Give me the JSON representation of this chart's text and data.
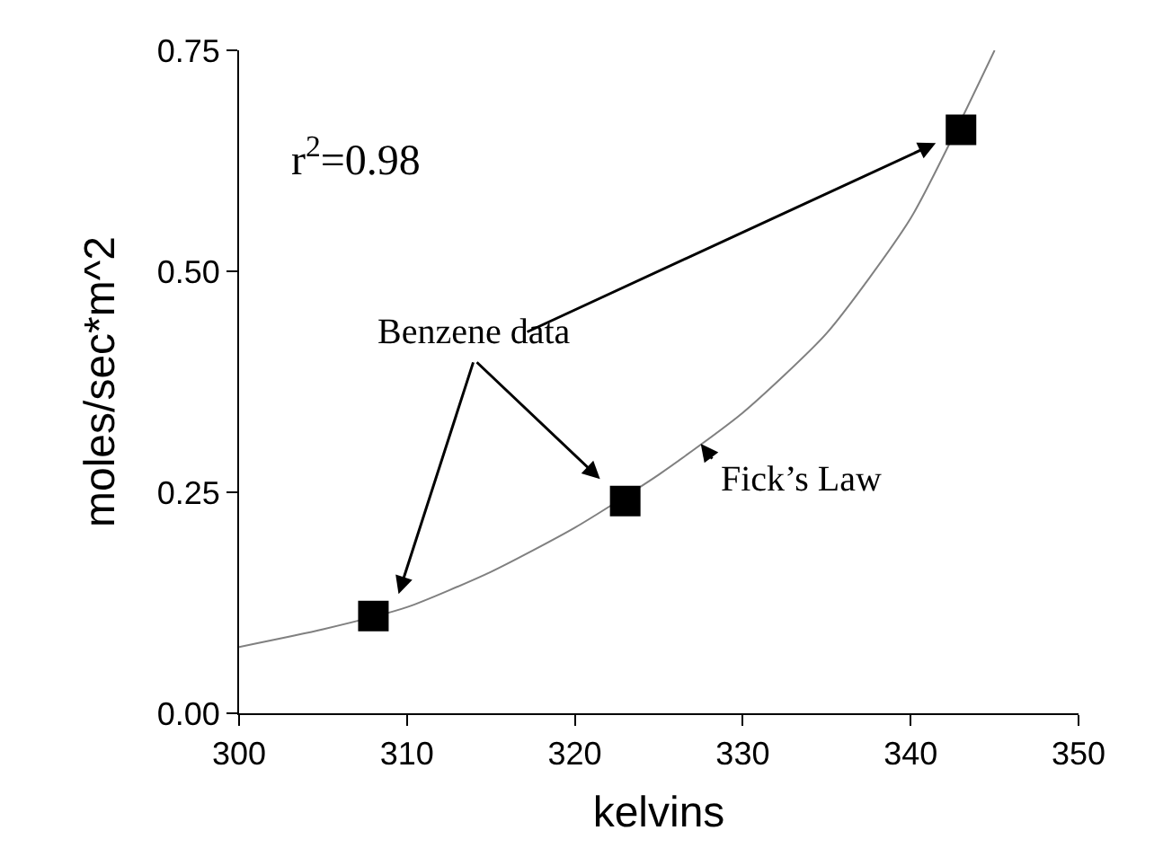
{
  "chart_data": {
    "type": "scatter",
    "xlabel": "kelvins",
    "ylabel": "moles/sec*m^2",
    "xlim": [
      300,
      350
    ],
    "xticks": [
      300,
      310,
      320,
      330,
      340,
      350
    ],
    "ylim": [
      0,
      0.75
    ],
    "yticks": [
      {
        "value": 0,
        "label": "0.00"
      },
      {
        "value": 0.25,
        "label": "0.25"
      },
      {
        "value": 0.5,
        "label": "0.50"
      },
      {
        "value": 0.75,
        "label": "0.75"
      }
    ],
    "grid": false,
    "series": [
      {
        "type": "line",
        "color": "#808080",
        "marker": "none",
        "x": [
          300,
          305,
          310,
          315,
          320,
          325,
          330,
          335,
          340,
          345
        ],
        "values": [
          0.075,
          0.095,
          0.12,
          0.16,
          0.21,
          0.27,
          0.34,
          0.43,
          0.56,
          0.75
        ]
      },
      {
        "color": "#000000",
        "marker": "square",
        "x": [
          308,
          323,
          343
        ],
        "values": [
          0.11,
          0.24,
          0.66
        ]
      }
    ],
    "annotations": [
      "r$^{2}$=0.98",
      "Benzene data",
      "Fick’s Law"
    ]
  }
}
